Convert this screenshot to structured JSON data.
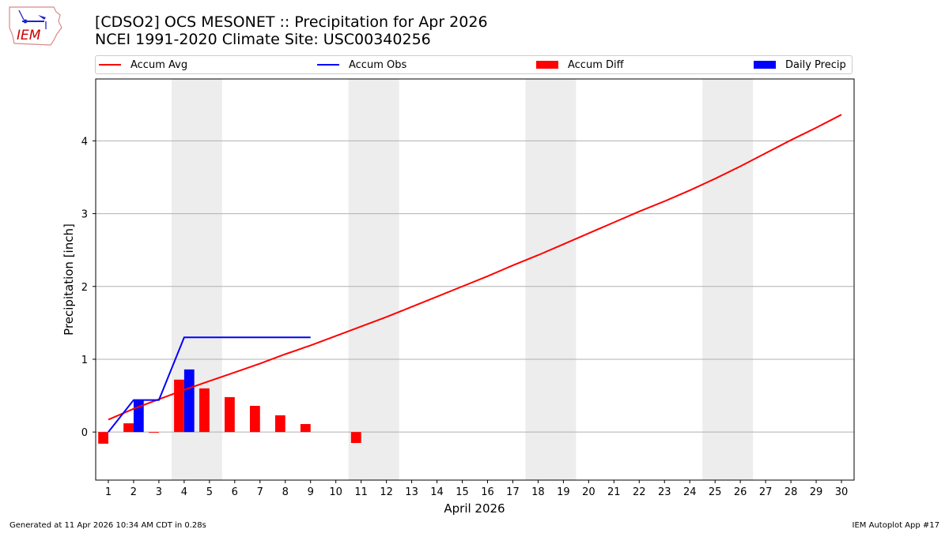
{
  "header": {
    "title_line1": "[CDSO2] OCS MESONET :: Precipitation for Apr 2026",
    "title_line2": "NCEI 1991-2020 Climate Site: USC00340256",
    "logo_text": "IEM"
  },
  "legend": [
    {
      "label": "Accum Avg",
      "kind": "line",
      "color": "#ff0000"
    },
    {
      "label": "Accum Obs",
      "kind": "line",
      "color": "#0000ff"
    },
    {
      "label": "Accum Diff",
      "kind": "patch",
      "color": "#ff0000"
    },
    {
      "label": "Daily Precip",
      "kind": "patch",
      "color": "#0000ff"
    }
  ],
  "footer": {
    "generated": "Generated at 11 Apr 2026 10:34 AM CDT in 0.28s",
    "app": "IEM Autoplot App #17"
  },
  "chart_data": {
    "type": "bar",
    "title": "[CDSO2] OCS MESONET :: Precipitation for Apr 2026\nNCEI 1991-2020 Climate Site: USC00340256",
    "xlabel": "April 2026",
    "ylabel": "Precipitation [inch]",
    "ylim": [
      -0.66,
      4.85
    ],
    "xlim": [
      0.5,
      30.5
    ],
    "yticks": [
      0,
      1,
      2,
      3,
      4
    ],
    "x": [
      1,
      2,
      3,
      4,
      5,
      6,
      7,
      8,
      9,
      10,
      11,
      12,
      13,
      14,
      15,
      16,
      17,
      18,
      19,
      20,
      21,
      22,
      23,
      24,
      25,
      26,
      27,
      28,
      29,
      30
    ],
    "grid": "y",
    "legend_position": "top",
    "weekend_shading": [
      [
        3.5,
        5.5
      ],
      [
        10.5,
        12.5
      ],
      [
        17.5,
        19.5
      ],
      [
        24.5,
        26.5
      ]
    ],
    "series": [
      {
        "name": "Accum Avg",
        "type": "line",
        "color": "#ff0000",
        "values": [
          0.17,
          0.32,
          0.45,
          0.58,
          0.7,
          0.82,
          0.94,
          1.07,
          1.19,
          1.32,
          1.45,
          1.58,
          1.72,
          1.86,
          2.0,
          2.14,
          2.29,
          2.43,
          2.58,
          2.73,
          2.88,
          3.03,
          3.17,
          3.32,
          3.48,
          3.65,
          3.83,
          4.01,
          4.18,
          4.36
        ]
      },
      {
        "name": "Accum Obs",
        "type": "line",
        "color": "#0000ff",
        "values": [
          0.0,
          0.44,
          0.44,
          1.3,
          1.3,
          1.3,
          1.3,
          1.3,
          1.3
        ]
      },
      {
        "name": "Accum Diff",
        "type": "bar",
        "color": "#ff0000",
        "values": [
          -0.16,
          0.12,
          -0.01,
          0.72,
          0.6,
          0.48,
          0.36,
          0.23,
          0.11,
          null,
          -0.15
        ]
      },
      {
        "name": "Daily Precip",
        "type": "bar",
        "color": "#0000ff",
        "values": [
          0.0,
          0.44,
          0.0,
          0.86,
          0.0,
          0.0,
          0.0,
          0.0,
          0.0
        ]
      }
    ]
  }
}
